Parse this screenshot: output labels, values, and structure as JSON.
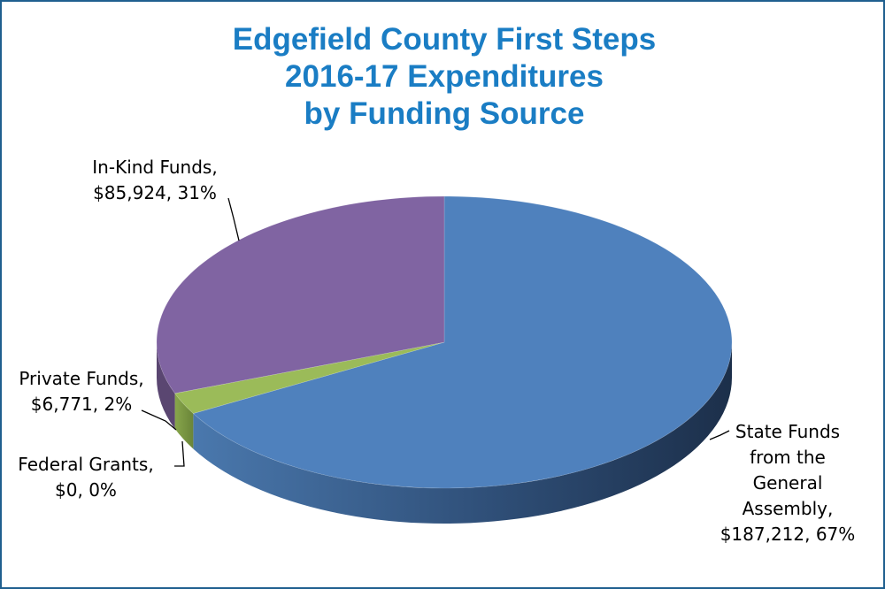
{
  "chart_data": {
    "type": "pie",
    "title_lines": [
      "Edgefield County First Steps",
      "2016-17 Expenditures",
      "by Funding Source"
    ],
    "slices": [
      {
        "key": "state",
        "label": "State Funds from the General Assembly",
        "value": 187212,
        "percent": 67,
        "label_lines": [
          "State Funds",
          "from the",
          "General",
          "Assembly,",
          "$187,212, 67%"
        ],
        "color": "#4f81bd"
      },
      {
        "key": "federal",
        "label": "Federal Grants",
        "value": 0,
        "percent": 0,
        "label_lines": [
          "Federal Grants,",
          "$0, 0%"
        ],
        "color": "#c0504d"
      },
      {
        "key": "private",
        "label": "Private Funds",
        "value": 6771,
        "percent": 2,
        "label_lines": [
          "Private Funds,",
          "$6,771, 2%"
        ],
        "color": "#9bbb59"
      },
      {
        "key": "inkind",
        "label": "In-Kind Funds",
        "value": 85924,
        "percent": 31,
        "label_lines": [
          "In-Kind Funds,",
          "$85,924, 31%"
        ],
        "color": "#8064a2"
      }
    ],
    "style": "3d-pie",
    "legend": "none"
  }
}
